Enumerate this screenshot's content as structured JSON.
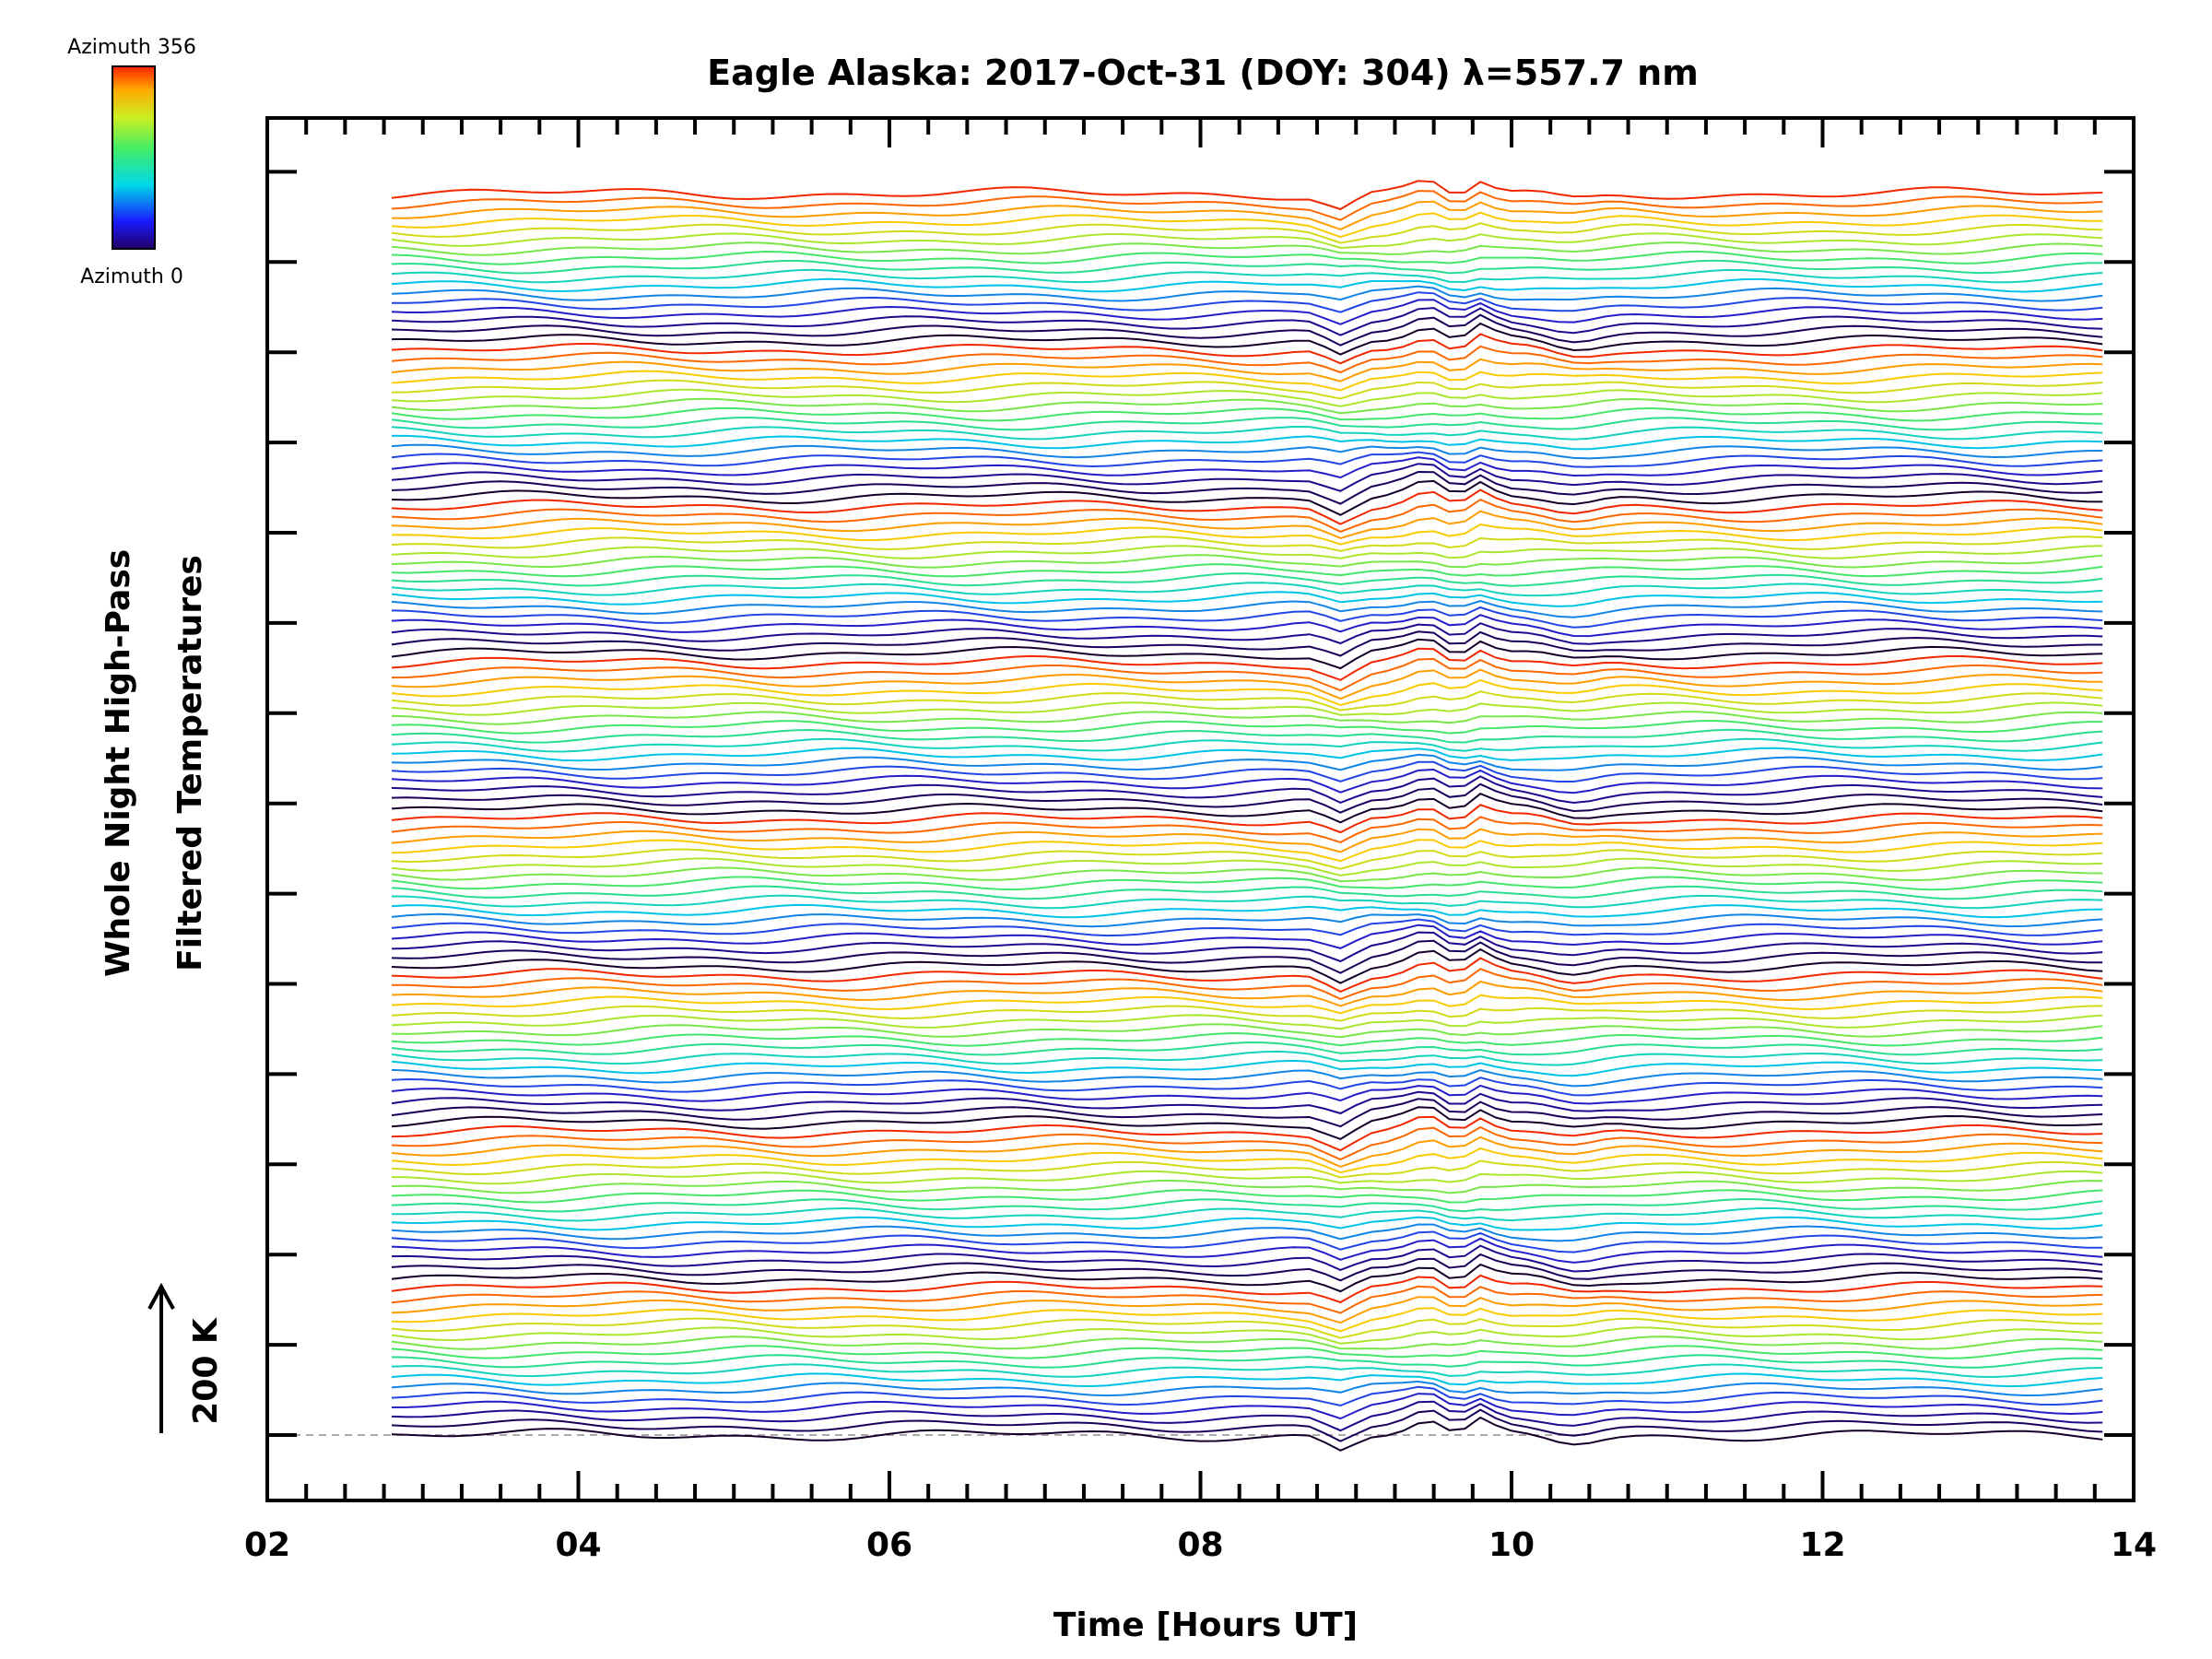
{
  "chart_data": {
    "type": "line",
    "title": "Eagle Alaska: 2017-Oct-31 (DOY: 304) λ=557.7 nm",
    "xlabel": "Time [Hours UT]",
    "ylabel_line1": "Whole Night High-Pass",
    "ylabel_line2": "Filtered Temperatures",
    "scale_label": "200 K",
    "x_ticks": [
      "02",
      "04",
      "06",
      "08",
      "10",
      "12",
      "14"
    ],
    "xlim": [
      2,
      14
    ],
    "x_start": 2.8,
    "x_end": 13.8,
    "series_count": 136,
    "azimuth_groups": 8,
    "colorbar": {
      "max_label": "Azimuth  356",
      "min_label": "Azimuth  0",
      "colormap": "rainbow"
    },
    "baseline_style": "dashed gray",
    "grid": false,
    "legend": "none"
  }
}
